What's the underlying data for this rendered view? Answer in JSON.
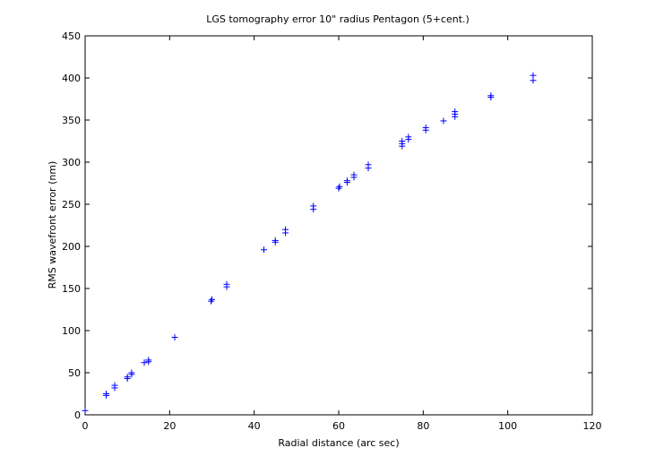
{
  "chart_data": {
    "type": "scatter",
    "title": "LGS tomography error 10\" radius Pentagon (5+cent.)",
    "xlabel": "Radial distance (arc sec)",
    "ylabel": "RMS wavefront error (nm)",
    "xlim": [
      0,
      120
    ],
    "ylim": [
      0,
      450
    ],
    "xticks": [
      0,
      20,
      40,
      60,
      80,
      100,
      120
    ],
    "yticks": [
      0,
      50,
      100,
      150,
      200,
      250,
      300,
      350,
      400,
      450
    ],
    "grid": false,
    "marker": "+",
    "marker_color": "#0000ff",
    "points": [
      [
        0,
        5
      ],
      [
        5,
        23
      ],
      [
        5,
        25
      ],
      [
        7,
        32
      ],
      [
        7,
        35
      ],
      [
        10,
        43
      ],
      [
        10,
        45
      ],
      [
        11,
        48
      ],
      [
        11,
        50
      ],
      [
        14,
        62
      ],
      [
        15,
        63
      ],
      [
        15,
        65
      ],
      [
        21.2,
        92
      ],
      [
        29.8,
        135
      ],
      [
        30,
        137
      ],
      [
        33.5,
        152
      ],
      [
        33.5,
        155
      ],
      [
        42.3,
        196
      ],
      [
        45,
        205
      ],
      [
        45,
        207
      ],
      [
        47.4,
        216
      ],
      [
        47.4,
        220
      ],
      [
        54,
        244
      ],
      [
        54,
        248
      ],
      [
        60,
        269
      ],
      [
        60.2,
        271
      ],
      [
        62,
        276
      ],
      [
        62,
        278
      ],
      [
        63.6,
        282
      ],
      [
        63.6,
        285
      ],
      [
        67,
        293
      ],
      [
        67,
        297
      ],
      [
        75,
        319
      ],
      [
        75,
        322
      ],
      [
        75,
        325
      ],
      [
        76.5,
        327
      ],
      [
        76.5,
        330
      ],
      [
        80.6,
        338
      ],
      [
        80.6,
        341
      ],
      [
        84.8,
        349
      ],
      [
        87.5,
        354
      ],
      [
        87.5,
        357
      ],
      [
        87.5,
        360
      ],
      [
        96,
        377
      ],
      [
        96,
        379
      ],
      [
        106,
        397
      ],
      [
        106,
        403
      ]
    ]
  }
}
